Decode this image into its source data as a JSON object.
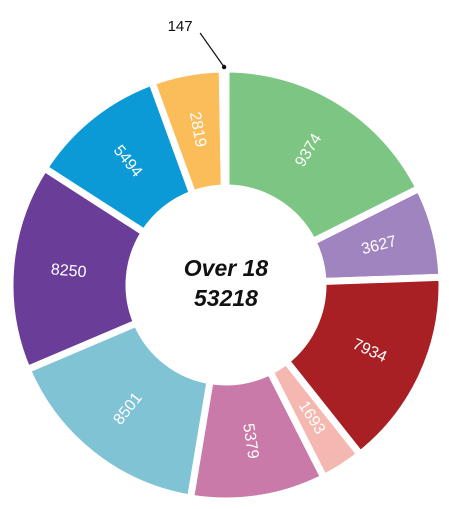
{
  "chart_data": {
    "type": "donut",
    "center_label": "Over 18",
    "total": 53218,
    "values": [
      9374,
      3627,
      7934,
      1693,
      5379,
      8501,
      8250,
      5494,
      2819,
      147
    ],
    "colors": [
      "#7dc582",
      "#a084c0",
      "#a82024",
      "#f5b8b0",
      "#c97aa8",
      "#7fc3d4",
      "#6a3e98",
      "#0b9ad6",
      "#fbbd59",
      "#111111"
    ]
  }
}
